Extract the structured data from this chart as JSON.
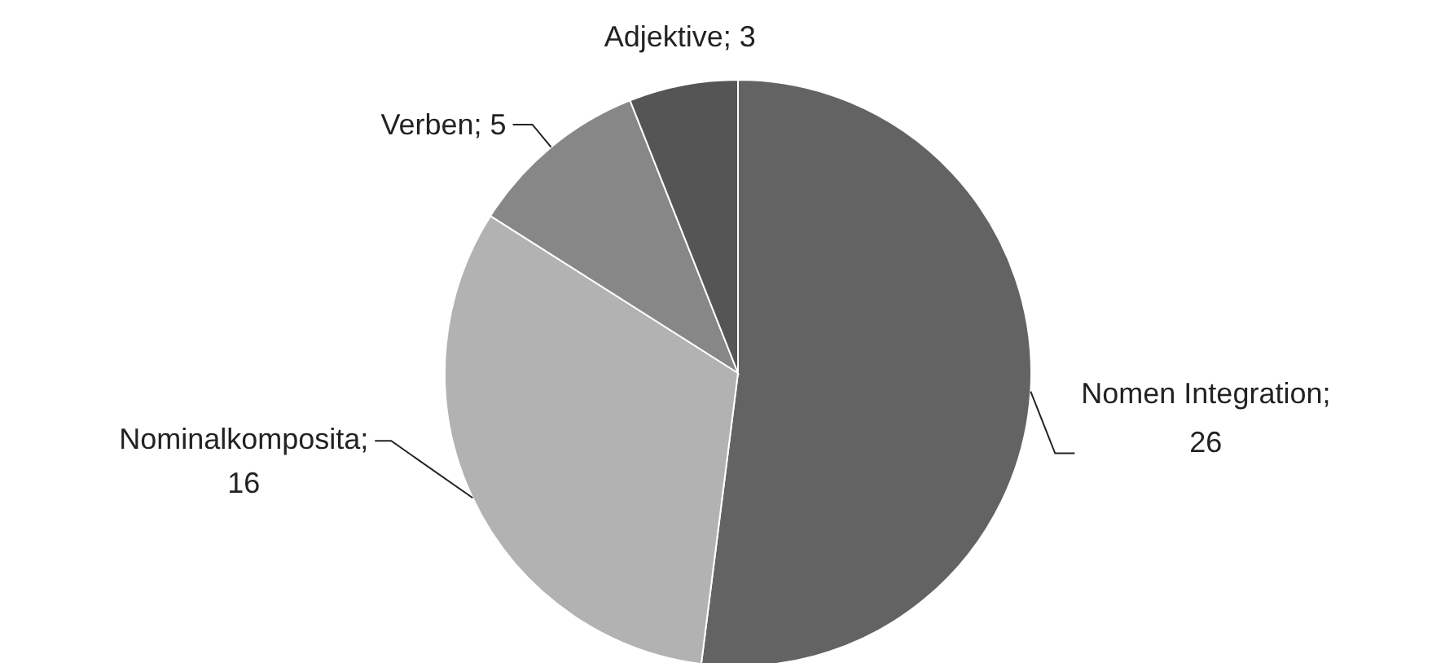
{
  "chart_data": {
    "type": "pie",
    "categories": [
      "Nomen Integration",
      "Nominalkomposita",
      "Verben",
      "Adjektive"
    ],
    "values": [
      26,
      16,
      5,
      3
    ],
    "colors": [
      "#636363",
      "#b2b2b2",
      "#878787",
      "#555555"
    ],
    "value_labels": [
      "; 26",
      "; 16",
      "; 5",
      "; 3"
    ],
    "legend": false
  }
}
